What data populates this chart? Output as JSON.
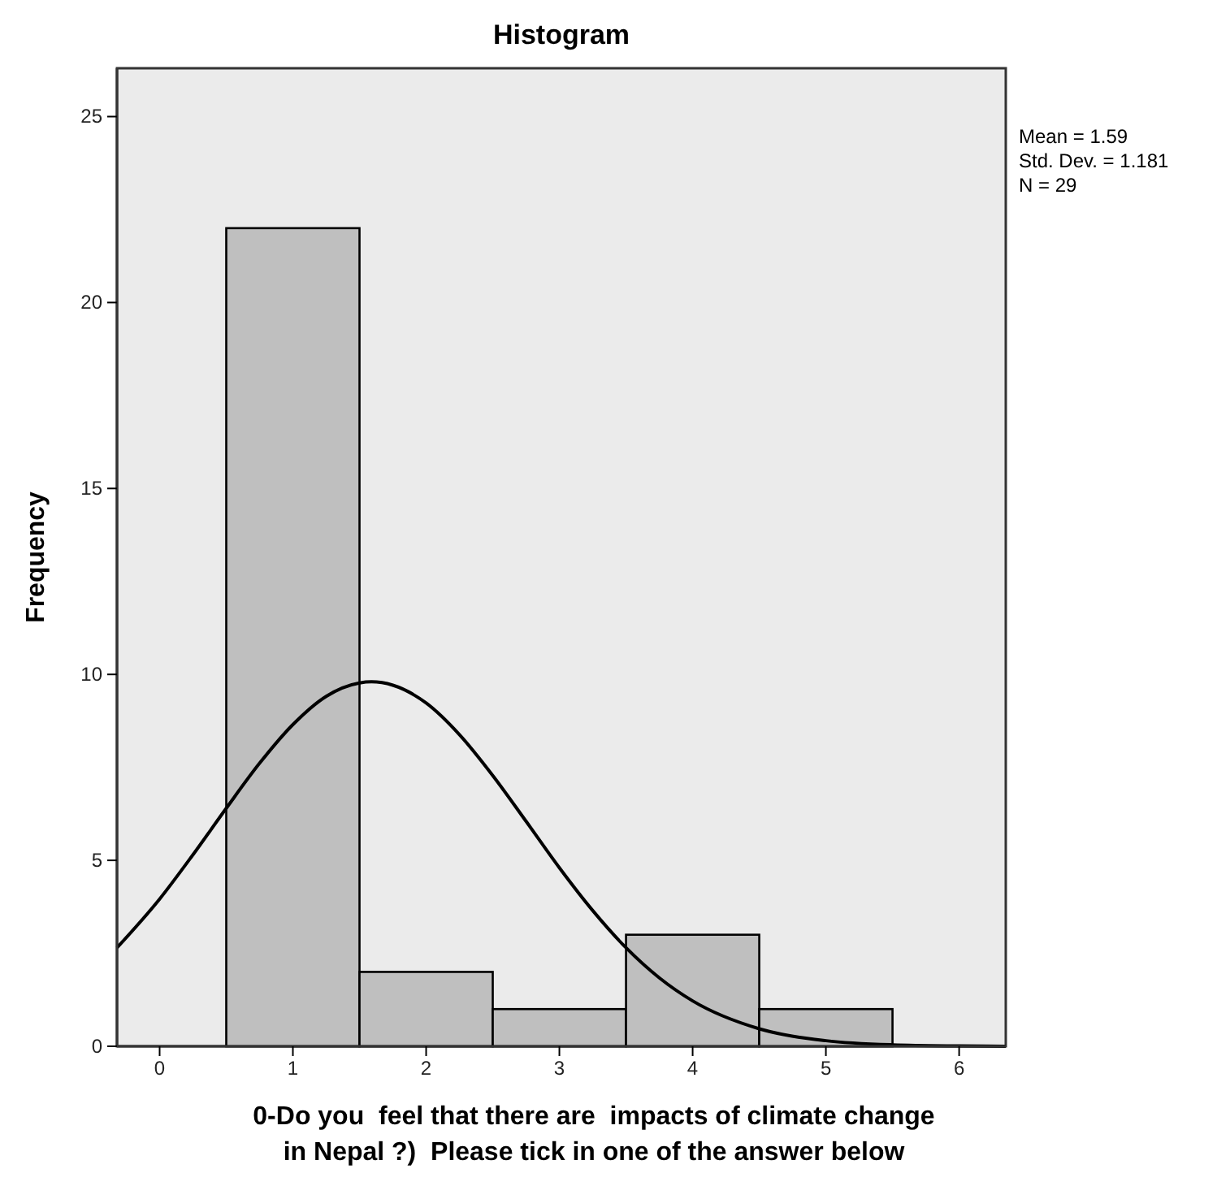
{
  "chart_data": {
    "type": "histogram",
    "title": "Histogram",
    "xlabel": "0-Do you  feel that there are  impacts of climate change\nin Nepal ?)  Please tick in one of the answer below",
    "ylabel": "Frequency",
    "bins": [
      0.5,
      1.5,
      2.5,
      3.5,
      4.5,
      5.5
    ],
    "values": [
      22,
      2,
      1,
      3,
      1
    ],
    "color": "#bfbfbf",
    "series": [
      {
        "type": "line",
        "color": "#000000",
        "x": [
          -0.32,
          0,
          0.25,
          0.5,
          0.75,
          1,
          1.25,
          1.5,
          1.59,
          1.75,
          2,
          2.25,
          2.5,
          2.75,
          3,
          3.25,
          3.5,
          3.75,
          4,
          4.5,
          5,
          5.5,
          6,
          6.35
        ],
        "values": [
          2.65,
          3.96,
          5.15,
          6.4,
          7.61,
          8.65,
          9.41,
          9.77,
          9.8,
          9.71,
          9.23,
          8.38,
          7.28,
          6.05,
          4.8,
          3.65,
          2.65,
          1.84,
          1.22,
          0.47,
          0.15,
          0.04,
          0.01,
          0
        ]
      }
    ],
    "xlim": [
      -0.32,
      6.35
    ],
    "ylim": [
      0,
      26.3
    ],
    "xticks": [
      0,
      1,
      2,
      3,
      4,
      5,
      6
    ],
    "yticks": [
      0,
      5,
      10,
      15,
      20,
      25
    ],
    "annotations": [
      "Mean = 1.59",
      "Std. Dev. = 1.181",
      "N = 29"
    ]
  }
}
